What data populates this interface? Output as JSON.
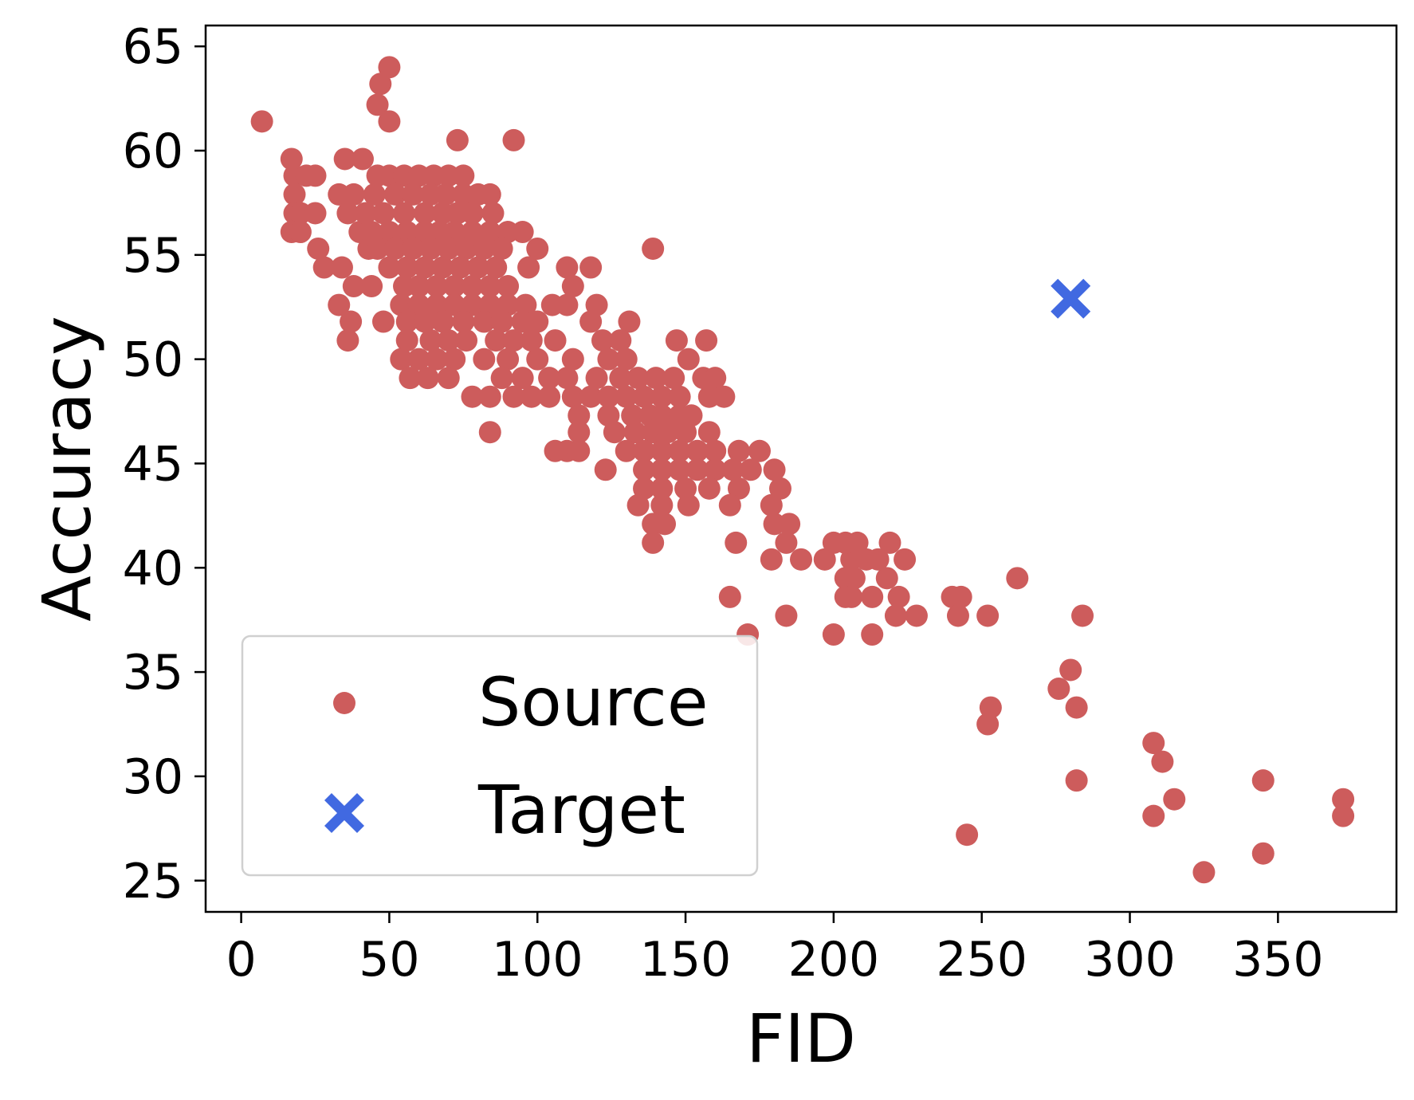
{
  "chart_data": {
    "type": "scatter",
    "xlabel": "FID",
    "ylabel": "Accuracy",
    "xlim": [
      -12,
      390
    ],
    "ylim": [
      23.5,
      66
    ],
    "xticks": [
      0,
      50,
      100,
      150,
      200,
      250,
      300,
      350
    ],
    "yticks": [
      25,
      30,
      35,
      40,
      45,
      50,
      55,
      60,
      65
    ],
    "grid": false,
    "legend": {
      "position": "lower-left"
    },
    "series": [
      {
        "name": "Source",
        "marker": "circle",
        "color": "#cd5c5c",
        "points": [
          [
            7,
            61.4
          ],
          [
            46,
            62.2
          ],
          [
            50,
            64
          ],
          [
            47,
            63.2
          ],
          [
            50,
            61.4
          ],
          [
            73,
            60.5
          ],
          [
            92,
            60.5
          ],
          [
            17,
            59.6
          ],
          [
            18,
            58.8
          ],
          [
            22,
            58.8
          ],
          [
            25,
            58.8
          ],
          [
            18,
            57.9
          ],
          [
            18,
            57
          ],
          [
            20,
            57
          ],
          [
            25,
            57
          ],
          [
            17,
            56.1
          ],
          [
            20,
            56.1
          ],
          [
            26,
            55.3
          ],
          [
            28,
            54.4
          ],
          [
            33,
            57.9
          ],
          [
            36,
            57
          ],
          [
            35,
            59.6
          ],
          [
            41,
            59.6
          ],
          [
            38,
            57.9
          ],
          [
            40,
            56.1
          ],
          [
            43,
            55.3
          ],
          [
            34,
            54.4
          ],
          [
            38,
            53.5
          ],
          [
            44,
            53.5
          ],
          [
            33,
            52.6
          ],
          [
            37,
            51.8
          ],
          [
            36,
            50.9
          ],
          [
            46,
            58.8
          ],
          [
            50,
            58.8
          ],
          [
            55,
            58.8
          ],
          [
            60,
            58.8
          ],
          [
            65,
            58.8
          ],
          [
            70,
            58.8
          ],
          [
            75,
            58.8
          ],
          [
            45,
            57.9
          ],
          [
            52,
            57.9
          ],
          [
            58,
            57.9
          ],
          [
            64,
            57.9
          ],
          [
            69,
            57.9
          ],
          [
            75,
            57.9
          ],
          [
            80,
            57.9
          ],
          [
            84,
            57.9
          ],
          [
            42,
            57
          ],
          [
            48,
            57
          ],
          [
            55,
            57
          ],
          [
            62,
            57
          ],
          [
            68,
            57
          ],
          [
            73,
            57
          ],
          [
            78,
            57
          ],
          [
            85,
            57
          ],
          [
            44,
            56.1
          ],
          [
            50,
            56.1
          ],
          [
            56,
            56.1
          ],
          [
            62,
            56.1
          ],
          [
            67,
            56.1
          ],
          [
            72,
            56.1
          ],
          [
            78,
            56.1
          ],
          [
            84,
            56.1
          ],
          [
            90,
            56.1
          ],
          [
            95,
            56.1
          ],
          [
            46,
            55.3
          ],
          [
            52,
            55.3
          ],
          [
            58,
            55.3
          ],
          [
            64,
            55.3
          ],
          [
            70,
            55.3
          ],
          [
            76,
            55.3
          ],
          [
            82,
            55.3
          ],
          [
            88,
            55.3
          ],
          [
            100,
            55.3
          ],
          [
            50,
            54.4
          ],
          [
            56,
            54.4
          ],
          [
            62,
            54.4
          ],
          [
            68,
            54.4
          ],
          [
            74,
            54.4
          ],
          [
            80,
            54.4
          ],
          [
            86,
            54.4
          ],
          [
            97,
            54.4
          ],
          [
            110,
            54.4
          ],
          [
            118,
            54.4
          ],
          [
            55,
            53.5
          ],
          [
            60,
            53.5
          ],
          [
            66,
            53.5
          ],
          [
            72,
            53.5
          ],
          [
            78,
            53.5
          ],
          [
            84,
            53.5
          ],
          [
            90,
            53.5
          ],
          [
            112,
            53.5
          ],
          [
            54,
            52.6
          ],
          [
            60,
            52.6
          ],
          [
            66,
            52.6
          ],
          [
            72,
            52.6
          ],
          [
            78,
            52.6
          ],
          [
            84,
            52.6
          ],
          [
            90,
            52.6
          ],
          [
            96,
            52.6
          ],
          [
            105,
            52.6
          ],
          [
            110,
            52.6
          ],
          [
            120,
            52.6
          ],
          [
            48,
            51.8
          ],
          [
            56,
            51.8
          ],
          [
            62,
            51.8
          ],
          [
            68,
            51.8
          ],
          [
            75,
            51.8
          ],
          [
            82,
            51.8
          ],
          [
            88,
            51.8
          ],
          [
            95,
            51.8
          ],
          [
            100,
            51.8
          ],
          [
            118,
            51.8
          ],
          [
            131,
            51.8
          ],
          [
            56,
            50.9
          ],
          [
            64,
            50.9
          ],
          [
            70,
            50.9
          ],
          [
            76,
            50.9
          ],
          [
            86,
            50.9
          ],
          [
            92,
            50.9
          ],
          [
            98,
            50.9
          ],
          [
            106,
            50.9
          ],
          [
            122,
            50.9
          ],
          [
            128,
            50.9
          ],
          [
            147,
            50.9
          ],
          [
            157,
            50.9
          ],
          [
            54,
            50
          ],
          [
            60,
            50
          ],
          [
            66,
            50
          ],
          [
            72,
            50
          ],
          [
            82,
            50
          ],
          [
            90,
            50
          ],
          [
            100,
            50
          ],
          [
            112,
            50
          ],
          [
            124,
            50
          ],
          [
            130,
            50
          ],
          [
            151,
            50
          ],
          [
            57,
            49.1
          ],
          [
            63,
            49.1
          ],
          [
            70,
            49.1
          ],
          [
            88,
            49.1
          ],
          [
            95,
            49.1
          ],
          [
            104,
            49.1
          ],
          [
            110,
            49.1
          ],
          [
            120,
            49.1
          ],
          [
            128,
            49.1
          ],
          [
            134,
            49.1
          ],
          [
            140,
            49.1
          ],
          [
            146,
            49.1
          ],
          [
            156,
            49.1
          ],
          [
            160,
            49.1
          ],
          [
            78,
            48.2
          ],
          [
            84,
            48.2
          ],
          [
            92,
            48.2
          ],
          [
            98,
            48.2
          ],
          [
            104,
            48.2
          ],
          [
            112,
            48.2
          ],
          [
            118,
            48.2
          ],
          [
            124,
            48.2
          ],
          [
            130,
            48.2
          ],
          [
            136,
            48.2
          ],
          [
            142,
            48.2
          ],
          [
            148,
            48.2
          ],
          [
            158,
            48.2
          ],
          [
            163,
            48.2
          ],
          [
            114,
            47.3
          ],
          [
            124,
            47.3
          ],
          [
            132,
            47.3
          ],
          [
            138,
            47.3
          ],
          [
            142,
            47.3
          ],
          [
            148,
            47.3
          ],
          [
            152,
            47.3
          ],
          [
            84,
            46.5
          ],
          [
            114,
            46.5
          ],
          [
            126,
            46.5
          ],
          [
            133,
            46.5
          ],
          [
            139,
            46.5
          ],
          [
            144,
            46.5
          ],
          [
            150,
            46.5
          ],
          [
            158,
            46.5
          ],
          [
            106,
            45.6
          ],
          [
            110,
            45.6
          ],
          [
            114,
            45.6
          ],
          [
            130,
            45.6
          ],
          [
            136,
            45.6
          ],
          [
            142,
            45.6
          ],
          [
            148,
            45.6
          ],
          [
            154,
            45.6
          ],
          [
            160,
            45.6
          ],
          [
            168,
            45.6
          ],
          [
            175,
            45.6
          ],
          [
            123,
            44.7
          ],
          [
            136,
            44.7
          ],
          [
            142,
            44.7
          ],
          [
            148,
            44.7
          ],
          [
            154,
            44.7
          ],
          [
            160,
            44.7
          ],
          [
            166,
            44.7
          ],
          [
            172,
            44.7
          ],
          [
            180,
            44.7
          ],
          [
            136,
            43.8
          ],
          [
            142,
            43.8
          ],
          [
            150,
            43.8
          ],
          [
            158,
            43.8
          ],
          [
            168,
            43.8
          ],
          [
            182,
            43.8
          ],
          [
            134,
            43
          ],
          [
            142,
            43
          ],
          [
            151,
            43
          ],
          [
            165,
            43
          ],
          [
            179,
            43
          ],
          [
            139,
            42.1
          ],
          [
            143,
            42.1
          ],
          [
            180,
            42.1
          ],
          [
            185,
            42.1
          ],
          [
            139,
            41.2
          ],
          [
            167,
            41.2
          ],
          [
            184,
            41.2
          ],
          [
            179,
            40.4
          ],
          [
            189,
            40.4
          ],
          [
            197,
            40.4
          ],
          [
            206,
            40.4
          ],
          [
            211,
            40.4
          ],
          [
            215,
            40.4
          ],
          [
            224,
            40.4
          ],
          [
            200,
            41.2
          ],
          [
            204,
            41.2
          ],
          [
            208,
            41.2
          ],
          [
            219,
            41.2
          ],
          [
            204,
            39.5
          ],
          [
            207,
            39.5
          ],
          [
            218,
            39.5
          ],
          [
            262,
            39.5
          ],
          [
            204,
            38.6
          ],
          [
            206,
            38.6
          ],
          [
            213,
            38.6
          ],
          [
            222,
            38.6
          ],
          [
            240,
            38.6
          ],
          [
            243,
            38.6
          ],
          [
            165,
            38.6
          ],
          [
            184,
            37.7
          ],
          [
            221,
            37.7
          ],
          [
            228,
            37.7
          ],
          [
            242,
            37.7
          ],
          [
            252,
            37.7
          ],
          [
            284,
            37.7
          ],
          [
            171,
            36.8
          ],
          [
            200,
            36.8
          ],
          [
            213,
            36.8
          ],
          [
            280,
            35.1
          ],
          [
            276,
            34.2
          ],
          [
            282,
            33.3
          ],
          [
            253,
            33.3
          ],
          [
            252,
            32.5
          ],
          [
            308,
            31.6
          ],
          [
            311,
            30.7
          ],
          [
            282,
            29.8
          ],
          [
            345,
            29.8
          ],
          [
            315,
            28.9
          ],
          [
            372,
            28.9
          ],
          [
            308,
            28.1
          ],
          [
            372,
            28.1
          ],
          [
            245,
            27.2
          ],
          [
            345,
            26.3
          ],
          [
            325,
            25.4
          ],
          [
            139,
            55.3
          ]
        ]
      },
      {
        "name": "Target",
        "marker": "x",
        "color": "#4169e1",
        "points": [
          [
            280,
            52.9
          ]
        ]
      }
    ]
  }
}
